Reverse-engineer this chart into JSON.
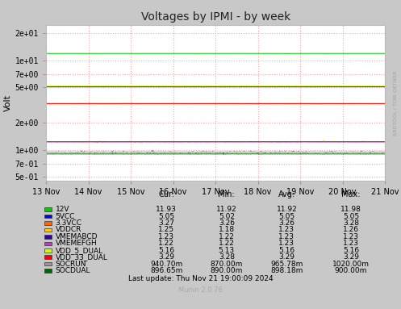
{
  "title": "Voltages by IPMI - by week",
  "ylabel": "Volt",
  "bg_color": "#C8C8C8",
  "plot_bg_color": "#FFFFFF",
  "grid_color_major": "#FF9999",
  "grid_color_minor": "#FFCCCC",
  "x_labels": [
    "13 Nov",
    "14 Nov",
    "15 Nov",
    "16 Nov",
    "17 Nov",
    "18 Nov",
    "19 Nov",
    "20 Nov",
    "21 Nov"
  ],
  "yticks": [
    0.5,
    0.7,
    1.0,
    2.0,
    5.0,
    7.0,
    10.0,
    20.0
  ],
  "ytick_labels": [
    "5e-01",
    "7e-01",
    "1e+00",
    "2e+00",
    "5e+00",
    "7e+00",
    "1e+01",
    "2e+01"
  ],
  "series": [
    {
      "name": "12V",
      "color": "#00CC00",
      "value": 11.93,
      "min": 11.92,
      "avg": 11.92,
      "max": 11.98,
      "nom": 11.93,
      "noise": 0.015
    },
    {
      "name": "5VCC",
      "color": "#0000FF",
      "value": 5.05,
      "min": 5.02,
      "avg": 5.05,
      "max": 5.05,
      "nom": 5.05,
      "noise": 0.008
    },
    {
      "name": "3.3VCC",
      "color": "#FF6600",
      "value": 3.27,
      "min": 3.26,
      "avg": 3.26,
      "max": 3.28,
      "nom": 3.27,
      "noise": 0.005
    },
    {
      "name": "VDDCR",
      "color": "#FFCC00",
      "value": 1.25,
      "min": 1.18,
      "avg": 1.23,
      "max": 1.26,
      "nom": 1.23,
      "noise": 0.015
    },
    {
      "name": "VMEMABCD",
      "color": "#330099",
      "value": 1.23,
      "min": 1.22,
      "avg": 1.23,
      "max": 1.23,
      "nom": 1.23,
      "noise": 0.004
    },
    {
      "name": "VMEMEFGH",
      "color": "#CC33CC",
      "value": 1.22,
      "min": 1.22,
      "avg": 1.23,
      "max": 1.23,
      "nom": 1.225,
      "noise": 0.004
    },
    {
      "name": "VDD_5_DUAL",
      "color": "#CCFF00",
      "value": 5.16,
      "min": 5.13,
      "avg": 5.16,
      "max": 5.16,
      "nom": 5.16,
      "noise": 0.008
    },
    {
      "name": "VDD_33_DUAL",
      "color": "#FF0000",
      "value": 3.29,
      "min": 3.28,
      "avg": 3.29,
      "max": 3.29,
      "nom": 3.29,
      "noise": 0.004
    },
    {
      "name": "SOCRUN",
      "color": "#999999",
      "value": 0.9407,
      "min": 0.87,
      "avg": 0.96578,
      "max": 1.02,
      "nom": 0.94,
      "noise": 0.025
    },
    {
      "name": "SOCDUAL",
      "color": "#006600",
      "value": 0.89665,
      "min": 0.89,
      "avg": 0.89818,
      "max": 0.9,
      "nom": 0.8975,
      "noise": 0.003
    }
  ],
  "col_headers": [
    "Cur:",
    "Min:",
    "Avg:",
    "Max:"
  ],
  "footer_text": "Last update: Thu Nov 21 19:00:09 2024",
  "munin_text": "Munin 2.0.76",
  "right_label": "RRDTOOL / TOBI OETIKER"
}
